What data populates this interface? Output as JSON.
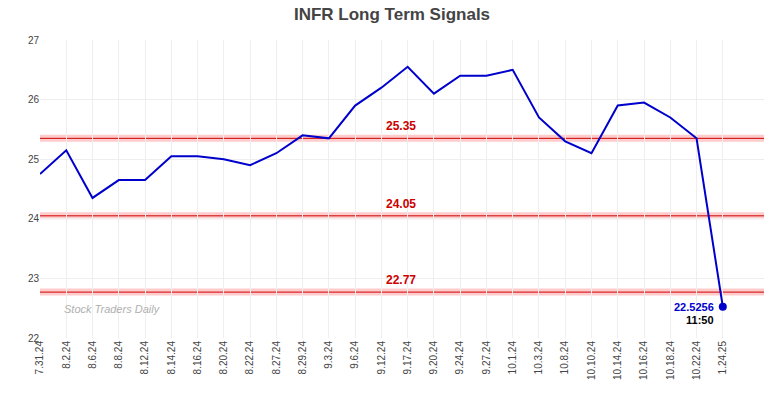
{
  "chart_data": {
    "type": "line",
    "title": "INFR Long Term Signals",
    "categories": [
      "7.31.24",
      "8.2.24",
      "8.6.24",
      "8.8.24",
      "8.12.24",
      "8.14.24",
      "8.16.24",
      "8.20.24",
      "8.22.24",
      "8.27.24",
      "8.29.24",
      "9.3.24",
      "9.6.24",
      "9.12.24",
      "9.17.24",
      "9.20.24",
      "9.24.24",
      "9.27.24",
      "10.1.24",
      "10.3.24",
      "10.8.24",
      "10.10.24",
      "10.14.24",
      "10.16.24",
      "10.18.24",
      "10.22.24",
      "1.24.25"
    ],
    "values": [
      24.75,
      25.15,
      24.35,
      24.65,
      24.65,
      25.05,
      25.05,
      25.0,
      24.9,
      25.1,
      25.4,
      25.35,
      25.9,
      26.2,
      26.55,
      26.1,
      26.4,
      26.4,
      26.5,
      25.7,
      25.3,
      25.1,
      25.9,
      25.95,
      25.7,
      25.35,
      22.5256
    ],
    "color": "#0000cc",
    "ylim": [
      22,
      27
    ],
    "yticks": [
      22,
      23,
      24,
      25,
      26,
      27
    ],
    "grid": true,
    "hlines": [
      {
        "value": 25.35,
        "label": "25.35",
        "color": "#cc0000"
      },
      {
        "value": 24.05,
        "label": "24.05",
        "color": "#cc0000"
      },
      {
        "value": 22.77,
        "label": "22.77",
        "color": "#cc0000"
      }
    ],
    "band_color": "#ffcccc",
    "annotations": [
      {
        "text": "11:50",
        "color": "#000000"
      },
      {
        "text": "22.5256",
        "color": "#0000cc"
      }
    ],
    "watermark": {
      "text": "Stock Traders Daily",
      "color": "#b0b0b0"
    }
  }
}
